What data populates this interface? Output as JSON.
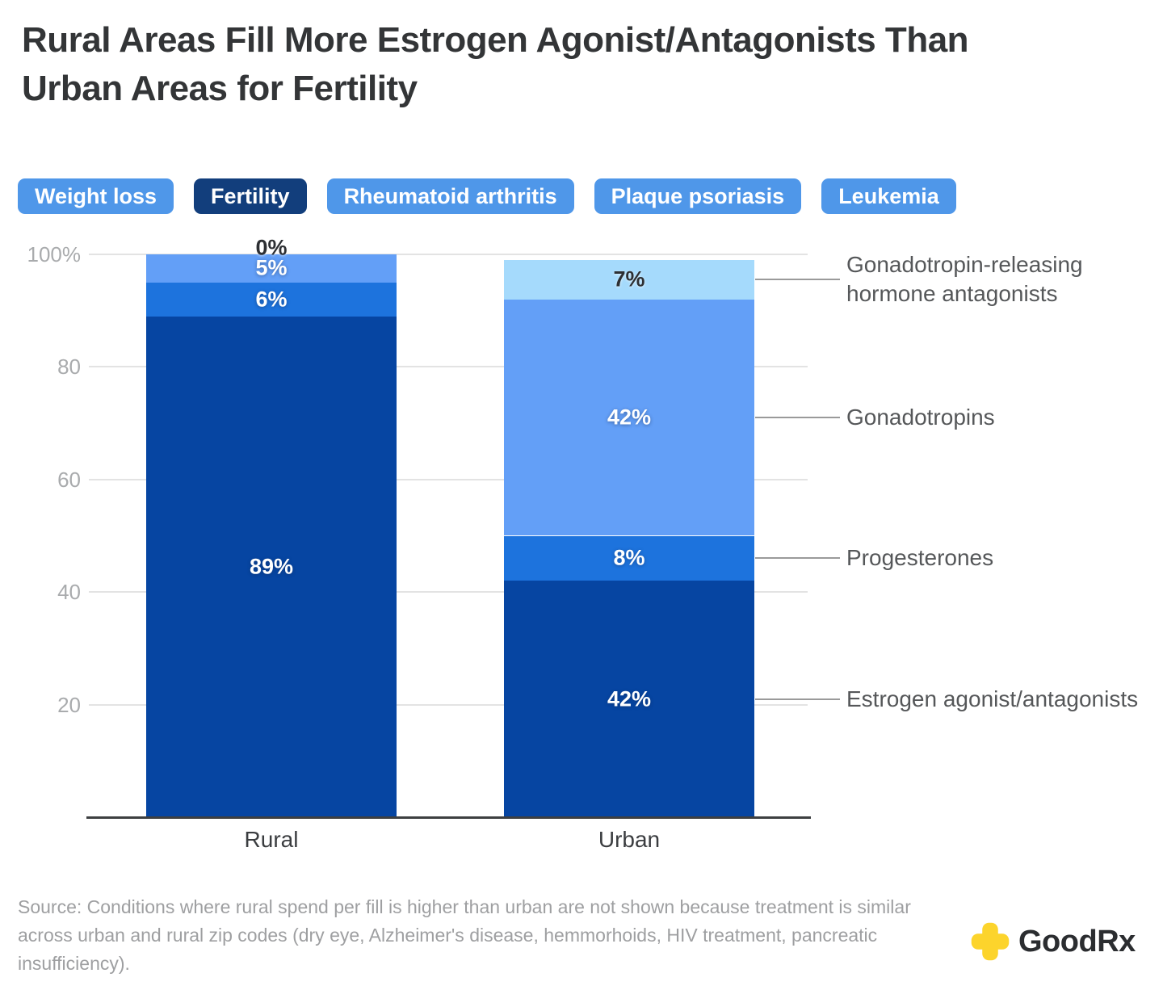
{
  "title_lines": [
    "Rural Areas Fill More Estrogen Agonist/Antagonists Than",
    "Urban Areas for Fertility"
  ],
  "tabs": [
    {
      "label": "Weight loss",
      "active": false
    },
    {
      "label": "Fertility",
      "active": true
    },
    {
      "label": "Rheumatoid arthritis",
      "active": false
    },
    {
      "label": "Plaque psoriasis",
      "active": false
    },
    {
      "label": "Leukemia",
      "active": false
    }
  ],
  "tab_colors": {
    "inactive_bg": "#4f97e9",
    "active_bg": "#123e7c"
  },
  "chart_data": {
    "type": "bar",
    "subtype": "stacked-percent-column",
    "categories": [
      "Rural",
      "Urban"
    ],
    "series": [
      {
        "name": "Estrogen agonist/antagonists",
        "color": "#0645a2",
        "values": [
          89,
          42
        ],
        "label_style": "light"
      },
      {
        "name": "Progesterones",
        "color": "#1d73dd",
        "values": [
          6,
          8
        ],
        "label_style": "light"
      },
      {
        "name": "Gonadotropins",
        "color": "#639ff7",
        "values": [
          5,
          42
        ],
        "label_style": "light"
      },
      {
        "name": "Gonadotropin-releasing hormone antagonists",
        "color": "#a5dafc",
        "values": [
          0,
          7
        ],
        "label_style": "dark"
      }
    ],
    "value_suffix": "%",
    "ylim": [
      0,
      100
    ],
    "y_ticks": [
      {
        "value": 100,
        "label": "100%"
      },
      {
        "value": 80,
        "label": "80"
      },
      {
        "value": 60,
        "label": "60"
      },
      {
        "value": 40,
        "label": "40"
      },
      {
        "value": 20,
        "label": "20"
      }
    ],
    "grid": true,
    "legend_position": "right-annotations",
    "annotation_source_category": "Urban"
  },
  "source": "Source: Conditions where rural spend per fill is higher than urban are not shown because treatment is similar across urban and rural zip codes (dry eye, Alzheimer's disease, hemmorhoids, HIV treatment, pancreatic insufficiency).",
  "logo": {
    "text": "GoodRx",
    "cross_color": "#fcd42c"
  }
}
